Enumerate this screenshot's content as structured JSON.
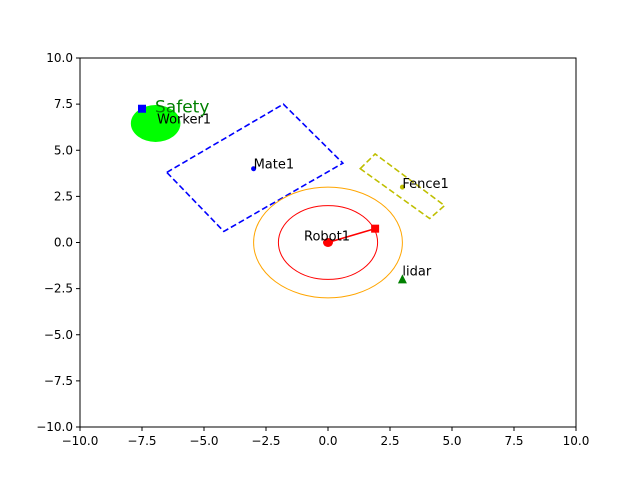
{
  "chart_data": {
    "type": "scatter",
    "title": "",
    "xlabel": "",
    "ylabel": "",
    "xlim": [
      -10,
      10
    ],
    "ylim": [
      -10,
      10
    ],
    "grid": false,
    "x_ticks": [
      "−10.0",
      "−7.5",
      "−5.0",
      "−2.5",
      "0.0",
      "2.5",
      "5.0",
      "7.5",
      "10.0"
    ],
    "y_ticks": [
      "−10.0",
      "−7.5",
      "−5.0",
      "−2.5",
      "0.0",
      "2.5",
      "5.0",
      "7.5",
      "10.0"
    ],
    "x_tick_values": [
      -10,
      -7.5,
      -5,
      -2.5,
      0,
      2.5,
      5,
      7.5,
      10
    ],
    "y_tick_values": [
      -10,
      -7.5,
      -5,
      -2.5,
      0,
      2.5,
      5,
      7.5,
      10
    ],
    "objects": {
      "robot": {
        "label": "Robot1",
        "position": [
          0,
          0
        ],
        "color": "#ff0000",
        "inner_radius": 2.0,
        "inner_color": "#ff0000",
        "outer_radius": 3.0,
        "outer_color": "#ffa500",
        "arm_end": [
          1.9,
          0.75
        ]
      },
      "worker": {
        "label": "Worker1",
        "position": [
          -7.5,
          7.25
        ],
        "color": "#0000ff",
        "zone_center": [
          -6.95,
          6.45
        ],
        "zone_radius": 1.0,
        "zone_color": "#00ff00",
        "zone_label": "Safety",
        "zone_label_color": "#008000"
      },
      "mate": {
        "label": "Mate1",
        "position": [
          -3.0,
          4.0
        ],
        "color": "#0000ff",
        "polygon": [
          [
            -6.5,
            3.8
          ],
          [
            -1.8,
            7.5
          ],
          [
            0.6,
            4.3
          ],
          [
            -4.2,
            0.6
          ]
        ]
      },
      "fence": {
        "label": "Fence1",
        "position": [
          3.0,
          3.0
        ],
        "color": "#bfbf00",
        "polygon": [
          [
            1.3,
            4.0
          ],
          [
            1.9,
            4.8
          ],
          [
            4.7,
            2.0
          ],
          [
            4.1,
            1.3
          ]
        ]
      },
      "lidar": {
        "label": "lidar",
        "position": [
          3.0,
          -2.0
        ],
        "color": "#008000"
      }
    }
  }
}
